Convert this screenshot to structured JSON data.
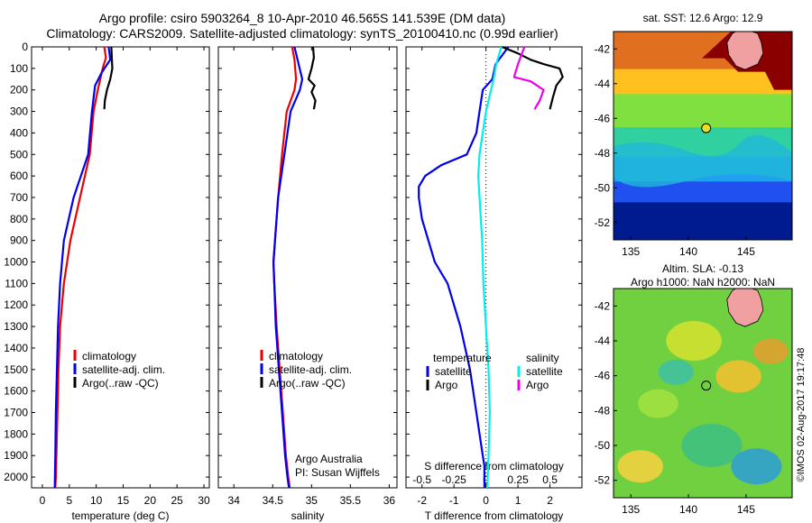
{
  "header": {
    "line1": "Argo profile: csiro 5903264_8 10-Apr-2010 46.565S 141.539E (DM data)",
    "line2": "Climatology: CARS2009. Satellite-adjusted climatology: synTS_20100410.nc (0.99d earlier)"
  },
  "side_text": "©IMOS 02-Aug-2017 19:17:48",
  "colors": {
    "argo": "#000000",
    "climatology": "#ee0000",
    "satellite": "#0000ee",
    "s_satellite": "#00eeee",
    "s_argo": "#ee00ee"
  },
  "chart_data": [
    {
      "type": "line",
      "panel": "temperature",
      "xlabel": "temperature (deg C)",
      "xlim": [
        -2,
        31
      ],
      "ylim": [
        2050,
        0
      ],
      "xticks": [
        0,
        5,
        10,
        15,
        20,
        25,
        30
      ],
      "yticks": [
        0,
        100,
        200,
        300,
        400,
        500,
        600,
        700,
        800,
        900,
        1000,
        1100,
        1200,
        1300,
        1400,
        1500,
        1600,
        1700,
        1800,
        1900,
        2000
      ],
      "legend": [
        "climatology",
        "satellite-adj. clim.",
        "Argo(..raw -QC)"
      ],
      "legend_position": "lower-middle",
      "series": [
        {
          "name": "climatology",
          "color": "#ee0000",
          "x": [
            11.5,
            11.8,
            11.2,
            10.3,
            9.5,
            8.8,
            7.0,
            5.2,
            4.0,
            3.3,
            3.0,
            2.8,
            2.6,
            2.5,
            2.4
          ],
          "y": [
            0,
            50,
            100,
            200,
            300,
            500,
            700,
            900,
            1100,
            1300,
            1500,
            1700,
            1900,
            2000,
            2050
          ]
        },
        {
          "name": "satellite-adj. clim.",
          "color": "#0000ee",
          "x": [
            12.3,
            12.6,
            11.0,
            9.8,
            9.2,
            8.5,
            5.8,
            4.0,
            3.3,
            2.9,
            2.7,
            2.5,
            2.4,
            2.3
          ],
          "y": [
            0,
            60,
            120,
            180,
            300,
            500,
            700,
            900,
            1100,
            1300,
            1500,
            1700,
            1900,
            2050
          ]
        },
        {
          "name": "Argo(..raw -QC)",
          "color": "#000000",
          "x": [
            12.8,
            12.9,
            13.0,
            12.6,
            12.0,
            11.6,
            11.5
          ],
          "y": [
            0,
            50,
            100,
            150,
            200,
            250,
            290
          ]
        }
      ]
    },
    {
      "type": "line",
      "panel": "salinity",
      "xlabel": "salinity",
      "xlim": [
        33.8,
        36.1
      ],
      "ylim": [
        2050,
        0
      ],
      "xticks": [
        34,
        34.5,
        35,
        35.5,
        36
      ],
      "legend": [
        "climatology",
        "satellite-adj. clim.",
        "Argo(..raw -QC)"
      ],
      "legend_position": "lower-middle",
      "annotation": [
        "Argo Australia",
        "PI: Susan Wijffels"
      ],
      "series": [
        {
          "name": "climatology",
          "color": "#ee0000",
          "x": [
            34.75,
            34.78,
            34.8,
            34.78,
            34.68,
            34.62,
            34.57,
            34.53,
            34.51,
            34.52,
            34.55,
            34.59,
            34.63,
            34.67,
            34.7,
            34.72
          ],
          "y": [
            0,
            60,
            150,
            200,
            300,
            500,
            700,
            900,
            1000,
            1100,
            1300,
            1500,
            1700,
            1900,
            2000,
            2050
          ]
        },
        {
          "name": "satellite-adj. clim.",
          "color": "#0000ee",
          "x": [
            34.78,
            34.82,
            34.88,
            34.85,
            34.73,
            34.65,
            34.57,
            34.53,
            34.51,
            34.52,
            34.54,
            34.58,
            34.62,
            34.66,
            34.69,
            34.71
          ],
          "y": [
            0,
            60,
            150,
            200,
            300,
            500,
            700,
            900,
            1000,
            1100,
            1300,
            1500,
            1700,
            1900,
            2000,
            2050
          ]
        },
        {
          "name": "Argo(..raw -QC)",
          "color": "#000000",
          "x": [
            35.02,
            35.03,
            35.0,
            34.96,
            35.04,
            35.0,
            35.05,
            35.03
          ],
          "y": [
            0,
            50,
            100,
            150,
            180,
            210,
            250,
            290
          ]
        }
      ]
    },
    {
      "type": "line",
      "panel": "difference",
      "xlabel": "T difference from climatology",
      "xlabel_top": "S difference from climatology",
      "xlim": [
        -2.5,
        3.0
      ],
      "xticks": [
        -2,
        -1,
        0,
        1,
        2
      ],
      "xticks_s": [
        -0.5,
        -0.25,
        0,
        0.25,
        0.5
      ],
      "xticks_s_labels": [
        "-0.5",
        "-0.25",
        "0",
        "0.25",
        "0.5"
      ],
      "ylim": [
        2050,
        0
      ],
      "legend_temperature": {
        "title": "temperature",
        "items": [
          "satellite",
          "Argo"
        ]
      },
      "legend_salinity": {
        "title": "salinity",
        "items": [
          "satellite",
          "Argo"
        ]
      },
      "series": [
        {
          "name": "temperature satellite",
          "color": "#0000ee",
          "x": [
            0.7,
            0.3,
            0.2,
            -0.1,
            -0.2,
            -0.3,
            -0.6,
            -1.4,
            -1.9,
            -2.1,
            -2.1,
            -2.0,
            -1.6,
            -1.2,
            -0.8,
            -0.5,
            -0.3,
            -0.15,
            -0.05,
            -0.05
          ],
          "y": [
            0,
            80,
            150,
            200,
            300,
            400,
            500,
            550,
            600,
            650,
            700,
            800,
            1000,
            1100,
            1300,
            1500,
            1700,
            1850,
            1950,
            2050
          ]
        },
        {
          "name": "temperature Argo",
          "color": "#000000",
          "x": [
            0.5,
            1.0,
            1.4,
            1.8,
            2.3,
            2.4,
            2.2,
            2.1,
            2.0
          ],
          "y": [
            0,
            30,
            60,
            80,
            100,
            140,
            180,
            230,
            290
          ]
        },
        {
          "name": "salinity satellite",
          "color": "#00eeee",
          "x": [
            0.12,
            0.08,
            0.06,
            0.04,
            0.0,
            -0.05,
            -0.06,
            -0.05,
            -0.03,
            -0.02,
            0.0,
            0.02,
            0.03,
            0.02,
            0.01
          ],
          "y": [
            0,
            80,
            150,
            200,
            300,
            500,
            600,
            700,
            900,
            1100,
            1300,
            1500,
            1700,
            1900,
            2050
          ]
        },
        {
          "name": "salinity Argo",
          "color": "#ee00ee",
          "x": [
            0.3,
            0.25,
            0.22,
            0.35,
            0.45,
            0.42,
            0.38
          ],
          "y": [
            0,
            80,
            140,
            160,
            200,
            250,
            290
          ]
        }
      ]
    },
    {
      "type": "heatmap",
      "panel": "sst_map",
      "title": "sat. SST: 12.6 Argo: 12.9",
      "xticks": [
        135,
        140,
        145
      ],
      "yticks": [
        -42,
        -44,
        -46,
        -48,
        -50,
        -52
      ],
      "xlim": [
        133.5,
        149
      ],
      "ylim": [
        -53,
        -41
      ],
      "argo_position": {
        "lon": 141.539,
        "lat": -46.565
      }
    },
    {
      "type": "heatmap",
      "panel": "sla_map",
      "title": "Altim. SLA: -0.13",
      "subtitle": "Argo h1000: NaN h2000: NaN",
      "xticks": [
        135,
        140,
        145
      ],
      "yticks": [
        -42,
        -44,
        -46,
        -48,
        -50,
        -52
      ],
      "xlim": [
        133.5,
        149
      ],
      "ylim": [
        -53,
        -41
      ],
      "argo_position": {
        "lon": 141.539,
        "lat": -46.565
      }
    }
  ]
}
